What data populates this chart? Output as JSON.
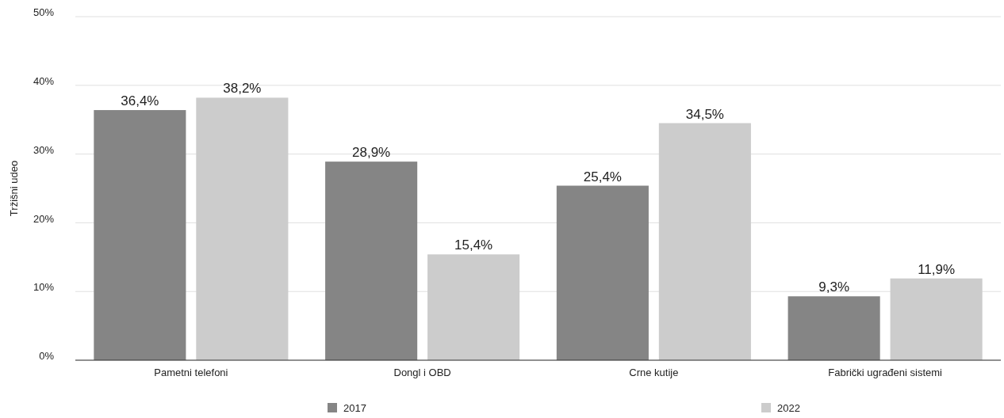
{
  "chart_data": {
    "type": "bar",
    "ylabel": "Tržišni udeo",
    "categories": [
      "Pametni telefoni",
      "Dongl i OBD",
      "Crne kutije",
      "Fabrički ugrađeni sistemi"
    ],
    "series": [
      {
        "name": "2017",
        "color": "#858585",
        "values": [
          36.4,
          28.9,
          25.4,
          9.3
        ],
        "value_labels": [
          "36,4%",
          "28,9%",
          "25,4%",
          "9,3%"
        ]
      },
      {
        "name": "2022",
        "color": "#cccccc",
        "values": [
          38.2,
          15.4,
          34.5,
          11.9
        ],
        "value_labels": [
          "38,2%",
          "15,4%",
          "34,5%",
          "11,9%"
        ]
      }
    ],
    "ylim": [
      0,
      50
    ],
    "yticks": [
      {
        "value": 0,
        "label": "0%"
      },
      {
        "value": 10,
        "label": "10%"
      },
      {
        "value": 20,
        "label": "20%"
      },
      {
        "value": 30,
        "label": "30%"
      },
      {
        "value": 40,
        "label": "40%"
      },
      {
        "value": 50,
        "label": "50%"
      }
    ],
    "grid": "y",
    "legend": "bottom"
  }
}
